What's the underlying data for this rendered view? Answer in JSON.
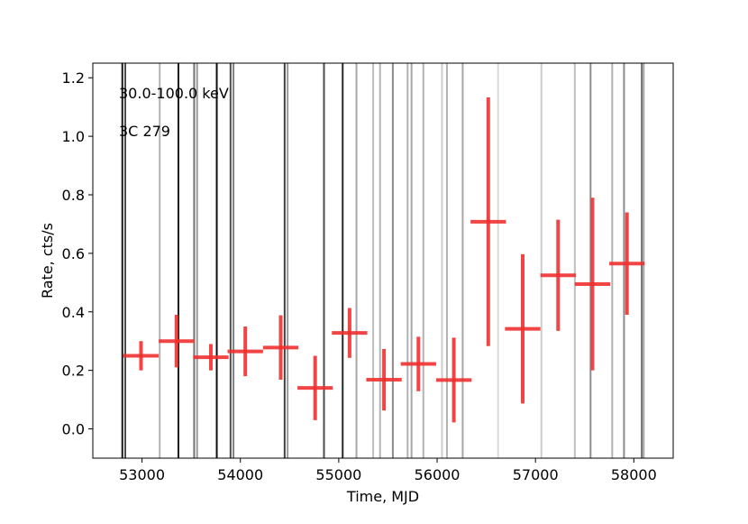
{
  "chart_data": {
    "type": "scatter",
    "xlabel": "Time, MJD",
    "ylabel": "Rate, cts/s",
    "xlim": [
      52500,
      58400
    ],
    "ylim": [
      -0.1,
      1.25
    ],
    "xticks": [
      53000,
      54000,
      55000,
      56000,
      57000,
      58000
    ],
    "yticks": [
      0.0,
      0.2,
      0.4,
      0.6,
      0.8,
      1.0,
      1.2
    ],
    "annotations": [
      "30.0-100.0 keV",
      "3C 279"
    ],
    "error_color": "#f03030",
    "series": [
      {
        "points": [
          {
            "x": 52990,
            "xerr": 180,
            "y": 0.25,
            "yerr": 0.05
          },
          {
            "x": 53350,
            "xerr": 180,
            "y": 0.3,
            "yerr": 0.09
          },
          {
            "x": 53700,
            "xerr": 180,
            "y": 0.245,
            "yerr": 0.045
          },
          {
            "x": 54050,
            "xerr": 180,
            "y": 0.265,
            "yerr": 0.085
          },
          {
            "x": 54410,
            "xerr": 180,
            "y": 0.278,
            "yerr": 0.11
          },
          {
            "x": 54760,
            "xerr": 180,
            "y": 0.14,
            "yerr": 0.11
          },
          {
            "x": 55110,
            "xerr": 180,
            "y": 0.328,
            "yerr": 0.085
          },
          {
            "x": 55460,
            "xerr": 180,
            "y": 0.168,
            "yerr": 0.105
          },
          {
            "x": 55810,
            "xerr": 180,
            "y": 0.222,
            "yerr": 0.093
          },
          {
            "x": 56170,
            "xerr": 180,
            "y": 0.167,
            "yerr": 0.145
          },
          {
            "x": 56520,
            "xerr": 180,
            "y": 0.708,
            "yerr": 0.425
          },
          {
            "x": 56870,
            "xerr": 180,
            "y": 0.342,
            "yerr": 0.255
          },
          {
            "x": 57230,
            "xerr": 180,
            "y": 0.525,
            "yerr": 0.19
          },
          {
            "x": 57580,
            "xerr": 180,
            "y": 0.495,
            "yerr": 0.295
          },
          {
            "x": 57930,
            "xerr": 180,
            "y": 0.565,
            "yerr": 0.175
          }
        ]
      }
    ],
    "background_lines": [
      {
        "x": 52800,
        "opacity": 0.9
      },
      {
        "x": 52830,
        "opacity": 0.7
      },
      {
        "x": 53180,
        "opacity": 0.3
      },
      {
        "x": 53370,
        "opacity": 0.9
      },
      {
        "x": 53530,
        "opacity": 0.55
      },
      {
        "x": 53560,
        "opacity": 0.4
      },
      {
        "x": 53760,
        "opacity": 0.95
      },
      {
        "x": 53900,
        "opacity": 0.7
      },
      {
        "x": 53930,
        "opacity": 0.5
      },
      {
        "x": 54450,
        "opacity": 0.75
      },
      {
        "x": 54480,
        "opacity": 0.4
      },
      {
        "x": 54850,
        "opacity": 0.7
      },
      {
        "x": 55040,
        "opacity": 0.85
      },
      {
        "x": 55180,
        "opacity": 0.35
      },
      {
        "x": 55350,
        "opacity": 0.25
      },
      {
        "x": 55420,
        "opacity": 0.3
      },
      {
        "x": 55550,
        "opacity": 0.45
      },
      {
        "x": 55700,
        "opacity": 0.3
      },
      {
        "x": 55740,
        "opacity": 0.35
      },
      {
        "x": 55860,
        "opacity": 0.3
      },
      {
        "x": 56050,
        "opacity": 0.2
      },
      {
        "x": 56100,
        "opacity": 0.3
      },
      {
        "x": 56260,
        "opacity": 0.35
      },
      {
        "x": 56620,
        "opacity": 0.15
      },
      {
        "x": 57060,
        "opacity": 0.2
      },
      {
        "x": 57400,
        "opacity": 0.25
      },
      {
        "x": 57560,
        "opacity": 0.45
      },
      {
        "x": 57780,
        "opacity": 0.3
      },
      {
        "x": 57900,
        "opacity": 0.45
      },
      {
        "x": 58080,
        "opacity": 0.55
      },
      {
        "x": 58100,
        "opacity": 0.35
      }
    ]
  }
}
